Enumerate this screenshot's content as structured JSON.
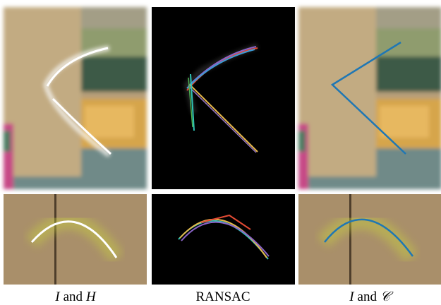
{
  "captions": [
    [
      "I",
      "and",
      "H"
    ],
    [
      "RANSAC"
    ],
    [
      "I",
      "and",
      "𝒞"
    ]
  ]
}
